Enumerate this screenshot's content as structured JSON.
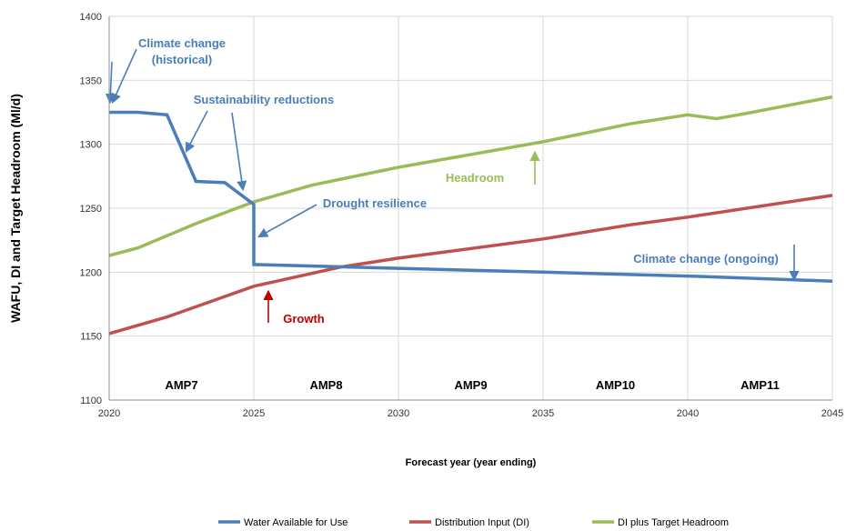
{
  "chart_data": {
    "type": "line",
    "xlabel": "Forecast year (year ending)",
    "ylabel": "WAFU, DI and Target Headroom (Ml/d)",
    "xlim": [
      2020,
      2045
    ],
    "ylim": [
      1100,
      1400
    ],
    "x_ticks": [
      "2020",
      "2025",
      "2030",
      "2035",
      "2040",
      "2045"
    ],
    "y_ticks": [
      "1100",
      "1150",
      "1200",
      "1250",
      "1300",
      "1350",
      "1400"
    ],
    "grid": "horizontal and vertical",
    "legend_position": "bottom",
    "periods": [
      {
        "label": "AMP7",
        "start": 2020,
        "end": 2025
      },
      {
        "label": "AMP8",
        "start": 2025,
        "end": 2030
      },
      {
        "label": "AMP9",
        "start": 2030,
        "end": 2035
      },
      {
        "label": "AMP10",
        "start": 2035,
        "end": 2040
      },
      {
        "label": "AMP11",
        "start": 2040,
        "end": 2045
      }
    ],
    "series": [
      {
        "name": "Water Available for Use",
        "color": "#4a7ebb",
        "points": [
          [
            2020,
            1325
          ],
          [
            2021,
            1325
          ],
          [
            2022,
            1323
          ],
          [
            2023,
            1271
          ],
          [
            2024,
            1270
          ],
          [
            2025,
            1253
          ],
          [
            2025,
            1206
          ],
          [
            2030,
            1203
          ],
          [
            2035,
            1200
          ],
          [
            2040,
            1197
          ],
          [
            2045,
            1193
          ]
        ]
      },
      {
        "name": "Distribution Input (DI)",
        "color": "#c0504d",
        "points": [
          [
            2020,
            1152
          ],
          [
            2022,
            1165
          ],
          [
            2025,
            1189
          ],
          [
            2028,
            1204
          ],
          [
            2030,
            1211
          ],
          [
            2035,
            1226
          ],
          [
            2038,
            1237
          ],
          [
            2040,
            1243
          ],
          [
            2045,
            1260
          ]
        ]
      },
      {
        "name": "DI plus Target Headroom",
        "color": "#9bbb59",
        "points": [
          [
            2020,
            1213
          ],
          [
            2021,
            1219
          ],
          [
            2023,
            1238
          ],
          [
            2025,
            1255
          ],
          [
            2027,
            1268
          ],
          [
            2030,
            1282
          ],
          [
            2035,
            1302
          ],
          [
            2038,
            1316
          ],
          [
            2040,
            1323
          ],
          [
            2041,
            1320
          ],
          [
            2042,
            1324
          ],
          [
            2045,
            1337
          ]
        ]
      }
    ],
    "annotations": [
      {
        "id": "climate-hist",
        "lines": [
          "Climate change",
          "(historical)"
        ],
        "color": "#4a7ebb"
      },
      {
        "id": "sustainability",
        "lines": [
          "Sustainability reductions"
        ],
        "color": "#4a7ebb"
      },
      {
        "id": "drought",
        "lines": [
          "Drought resilience"
        ],
        "color": "#4a7ebb"
      },
      {
        "id": "headroom",
        "lines": [
          "Headroom"
        ],
        "color": "#9bbb59"
      },
      {
        "id": "climate-ongoing",
        "lines": [
          "Climate change (ongoing)"
        ],
        "color": "#4a7ebb"
      },
      {
        "id": "growth",
        "lines": [
          "Growth"
        ],
        "color": "#c00000"
      }
    ]
  }
}
